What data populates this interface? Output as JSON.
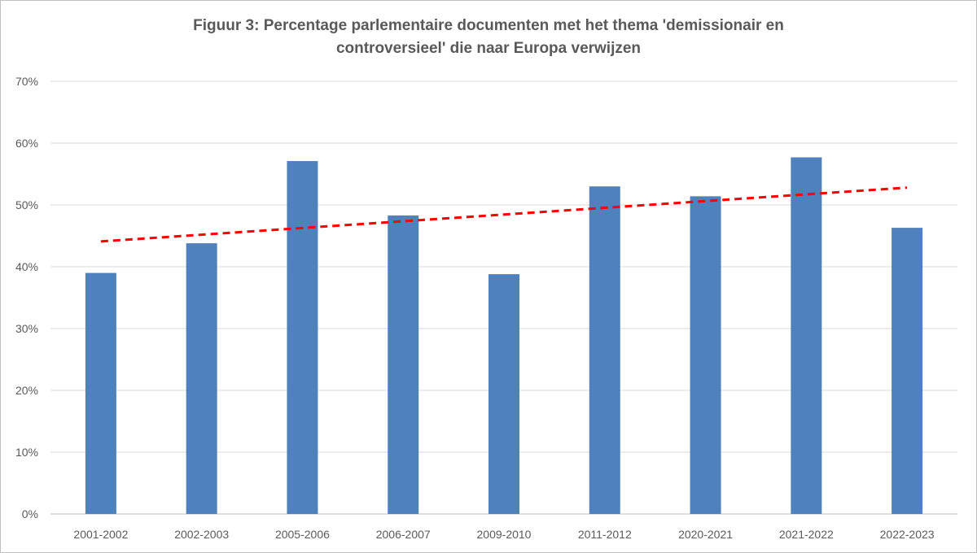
{
  "chart_data": {
    "type": "bar",
    "title_line1": "Figuur 3: Percentage parlementaire documenten met het thema 'demissionair en",
    "title_line2": "controversieel' die naar Europa verwijzen",
    "xlabel": "",
    "ylabel": "",
    "categories": [
      "2001-2002",
      "2002-2003",
      "2005-2006",
      "2006-2007",
      "2009-2010",
      "2011-2012",
      "2020-2021",
      "2021-2022",
      "2022-2023"
    ],
    "values": [
      39,
      43.8,
      57.1,
      48.3,
      38.8,
      53,
      51.4,
      57.7,
      46.3
    ],
    "ylim": [
      0,
      70
    ],
    "yticks": [
      0,
      10,
      20,
      30,
      40,
      50,
      60,
      70
    ],
    "ytick_labels": [
      "0%",
      "10%",
      "20%",
      "30%",
      "40%",
      "50%",
      "60%",
      "70%"
    ],
    "grid": true,
    "bar_color": "#4f81bd",
    "trendline": {
      "type": "linear",
      "style": "dashed",
      "color": "#ff0000",
      "start": 44.1,
      "end": 52.8
    }
  }
}
